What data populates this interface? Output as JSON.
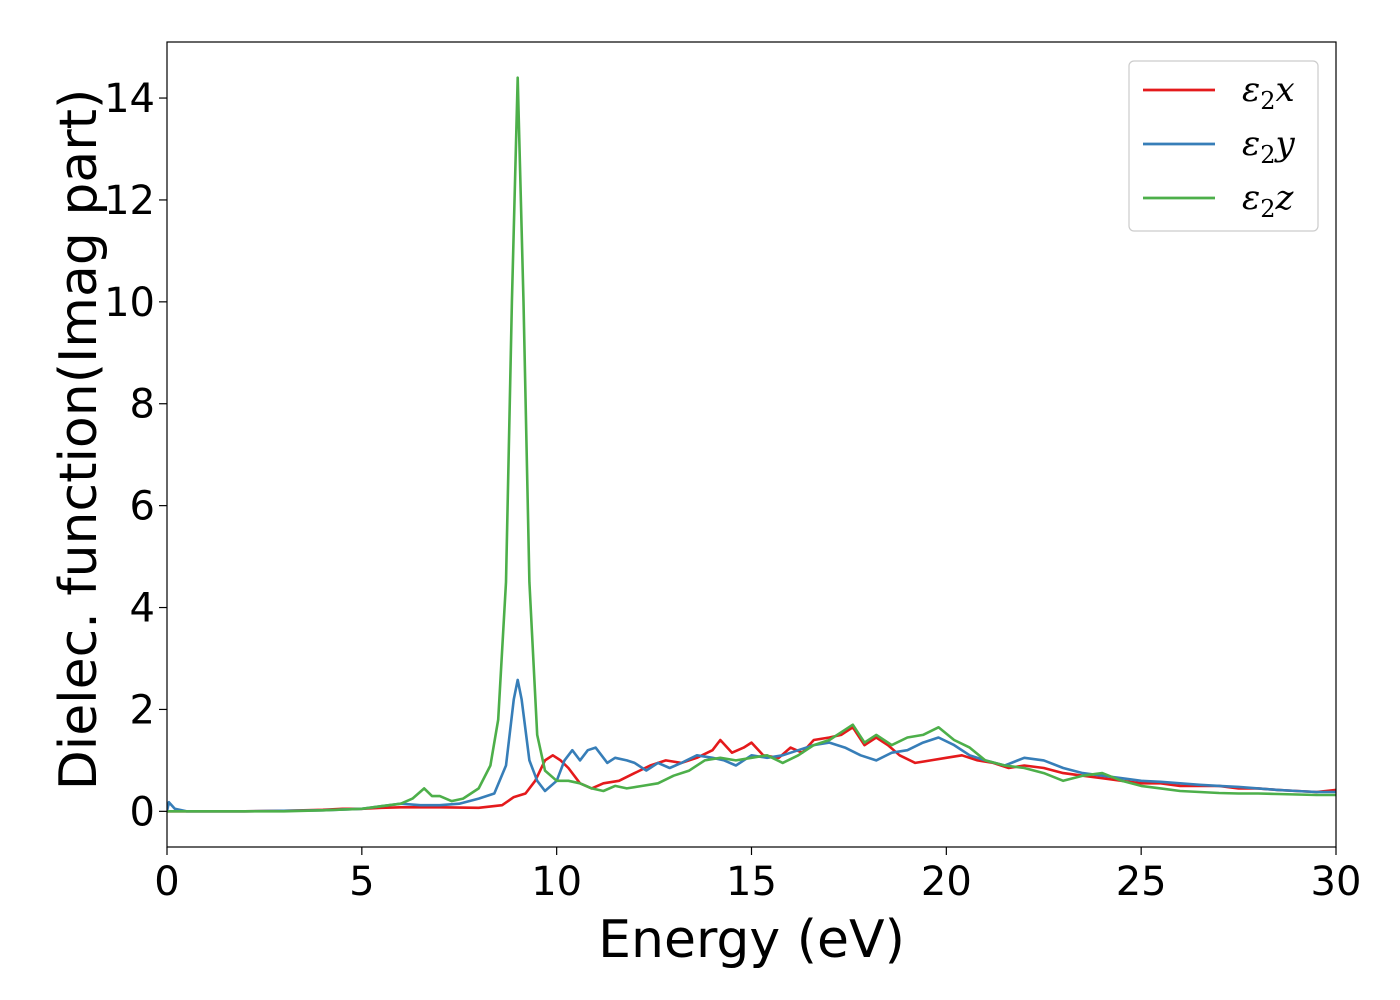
{
  "chart_data": {
    "type": "line",
    "title": "",
    "xlabel": "Energy (eV)",
    "ylabel": "Dielec. function(Imag part)",
    "xlim": [
      0,
      30
    ],
    "ylim": [
      -0.7,
      15.1
    ],
    "xticks": [
      0,
      5,
      10,
      15,
      20,
      25,
      30
    ],
    "yticks": [
      0,
      2,
      4,
      6,
      8,
      10,
      12,
      14
    ],
    "grid": false,
    "legend_position": "top-right",
    "series": [
      {
        "name": "ε2x",
        "legend": {
          "base": "ε",
          "sub": "2",
          "suffix": "x"
        },
        "color": "#e41a1c",
        "points": [
          [
            0,
            0.0
          ],
          [
            1,
            0.0
          ],
          [
            2,
            0.0
          ],
          [
            3,
            0.01
          ],
          [
            4,
            0.03
          ],
          [
            4.5,
            0.05
          ],
          [
            5,
            0.05
          ],
          [
            5.5,
            0.07
          ],
          [
            6,
            0.08
          ],
          [
            7,
            0.08
          ],
          [
            8,
            0.07
          ],
          [
            8.6,
            0.12
          ],
          [
            8.9,
            0.28
          ],
          [
            9.2,
            0.35
          ],
          [
            9.45,
            0.6
          ],
          [
            9.7,
            1.0
          ],
          [
            9.9,
            1.1
          ],
          [
            10.1,
            1.0
          ],
          [
            10.3,
            0.85
          ],
          [
            10.6,
            0.55
          ],
          [
            10.9,
            0.45
          ],
          [
            11.2,
            0.55
          ],
          [
            11.6,
            0.6
          ],
          [
            12.0,
            0.75
          ],
          [
            12.4,
            0.9
          ],
          [
            12.8,
            1.0
          ],
          [
            13.2,
            0.95
          ],
          [
            13.6,
            1.05
          ],
          [
            14.0,
            1.2
          ],
          [
            14.2,
            1.4
          ],
          [
            14.5,
            1.15
          ],
          [
            14.8,
            1.25
          ],
          [
            15.0,
            1.35
          ],
          [
            15.3,
            1.1
          ],
          [
            15.7,
            1.05
          ],
          [
            16.0,
            1.25
          ],
          [
            16.3,
            1.15
          ],
          [
            16.6,
            1.4
          ],
          [
            17.0,
            1.45
          ],
          [
            17.3,
            1.5
          ],
          [
            17.6,
            1.65
          ],
          [
            17.9,
            1.3
          ],
          [
            18.2,
            1.45
          ],
          [
            18.5,
            1.3
          ],
          [
            18.8,
            1.1
          ],
          [
            19.2,
            0.95
          ],
          [
            19.6,
            1.0
          ],
          [
            20.0,
            1.05
          ],
          [
            20.4,
            1.1
          ],
          [
            20.8,
            1.0
          ],
          [
            21.2,
            0.95
          ],
          [
            21.6,
            0.85
          ],
          [
            22.0,
            0.9
          ],
          [
            22.5,
            0.85
          ],
          [
            23.0,
            0.75
          ],
          [
            23.5,
            0.7
          ],
          [
            24.0,
            0.65
          ],
          [
            24.5,
            0.6
          ],
          [
            25.0,
            0.55
          ],
          [
            25.5,
            0.55
          ],
          [
            26.0,
            0.5
          ],
          [
            26.5,
            0.5
          ],
          [
            27.0,
            0.5
          ],
          [
            27.5,
            0.45
          ],
          [
            28.0,
            0.45
          ],
          [
            28.5,
            0.42
          ],
          [
            29.0,
            0.4
          ],
          [
            29.5,
            0.38
          ],
          [
            30.0,
            0.42
          ]
        ]
      },
      {
        "name": "ε2y",
        "legend": {
          "base": "ε",
          "sub": "2",
          "suffix": "y"
        },
        "color": "#377eb8",
        "points": [
          [
            0,
            0.0
          ],
          [
            0.05,
            0.18
          ],
          [
            0.2,
            0.05
          ],
          [
            0.5,
            0.0
          ],
          [
            2,
            0.0
          ],
          [
            4,
            0.02
          ],
          [
            5,
            0.05
          ],
          [
            5.5,
            0.1
          ],
          [
            6,
            0.15
          ],
          [
            6.5,
            0.12
          ],
          [
            7,
            0.12
          ],
          [
            7.5,
            0.15
          ],
          [
            8.0,
            0.25
          ],
          [
            8.4,
            0.35
          ],
          [
            8.7,
            0.9
          ],
          [
            8.9,
            2.2
          ],
          [
            9.0,
            2.58
          ],
          [
            9.1,
            2.2
          ],
          [
            9.3,
            1.0
          ],
          [
            9.5,
            0.6
          ],
          [
            9.7,
            0.4
          ],
          [
            10.0,
            0.6
          ],
          [
            10.2,
            1.0
          ],
          [
            10.4,
            1.2
          ],
          [
            10.6,
            1.0
          ],
          [
            10.8,
            1.2
          ],
          [
            11.0,
            1.25
          ],
          [
            11.3,
            0.95
          ],
          [
            11.5,
            1.05
          ],
          [
            11.8,
            1.0
          ],
          [
            12.0,
            0.95
          ],
          [
            12.3,
            0.8
          ],
          [
            12.6,
            0.95
          ],
          [
            12.9,
            0.85
          ],
          [
            13.2,
            0.95
          ],
          [
            13.6,
            1.1
          ],
          [
            14.0,
            1.05
          ],
          [
            14.3,
            1.0
          ],
          [
            14.6,
            0.9
          ],
          [
            15.0,
            1.1
          ],
          [
            15.4,
            1.05
          ],
          [
            15.8,
            1.1
          ],
          [
            16.2,
            1.2
          ],
          [
            16.6,
            1.3
          ],
          [
            17.0,
            1.35
          ],
          [
            17.4,
            1.25
          ],
          [
            17.8,
            1.1
          ],
          [
            18.2,
            1.0
          ],
          [
            18.6,
            1.15
          ],
          [
            19.0,
            1.2
          ],
          [
            19.4,
            1.35
          ],
          [
            19.8,
            1.45
          ],
          [
            20.2,
            1.3
          ],
          [
            20.6,
            1.1
          ],
          [
            21.0,
            1.0
          ],
          [
            21.5,
            0.9
          ],
          [
            22.0,
            1.05
          ],
          [
            22.5,
            1.0
          ],
          [
            23.0,
            0.85
          ],
          [
            23.5,
            0.75
          ],
          [
            24.0,
            0.7
          ],
          [
            24.5,
            0.65
          ],
          [
            25.0,
            0.6
          ],
          [
            25.5,
            0.58
          ],
          [
            26.0,
            0.55
          ],
          [
            26.5,
            0.52
          ],
          [
            27.0,
            0.5
          ],
          [
            27.5,
            0.48
          ],
          [
            28.0,
            0.45
          ],
          [
            28.5,
            0.42
          ],
          [
            29.0,
            0.4
          ],
          [
            29.5,
            0.38
          ],
          [
            30.0,
            0.38
          ]
        ]
      },
      {
        "name": "ε2z",
        "legend": {
          "base": "ε",
          "sub": "2",
          "suffix": "z"
        },
        "color": "#4daf4a",
        "points": [
          [
            0,
            0.0
          ],
          [
            1,
            0.0
          ],
          [
            3,
            0.0
          ],
          [
            4,
            0.02
          ],
          [
            5,
            0.05
          ],
          [
            5.5,
            0.1
          ],
          [
            6,
            0.15
          ],
          [
            6.3,
            0.25
          ],
          [
            6.6,
            0.45
          ],
          [
            6.8,
            0.3
          ],
          [
            7.0,
            0.3
          ],
          [
            7.3,
            0.2
          ],
          [
            7.6,
            0.25
          ],
          [
            8.0,
            0.45
          ],
          [
            8.3,
            0.9
          ],
          [
            8.5,
            1.8
          ],
          [
            8.7,
            4.5
          ],
          [
            8.85,
            10.0
          ],
          [
            9.0,
            14.4
          ],
          [
            9.15,
            10.0
          ],
          [
            9.3,
            4.5
          ],
          [
            9.5,
            1.5
          ],
          [
            9.7,
            0.8
          ],
          [
            10.0,
            0.6
          ],
          [
            10.3,
            0.6
          ],
          [
            10.6,
            0.55
          ],
          [
            10.9,
            0.45
          ],
          [
            11.2,
            0.4
          ],
          [
            11.5,
            0.5
          ],
          [
            11.8,
            0.45
          ],
          [
            12.2,
            0.5
          ],
          [
            12.6,
            0.55
          ],
          [
            13.0,
            0.7
          ],
          [
            13.4,
            0.8
          ],
          [
            13.8,
            1.0
          ],
          [
            14.2,
            1.05
          ],
          [
            14.6,
            1.0
          ],
          [
            15.0,
            1.05
          ],
          [
            15.4,
            1.1
          ],
          [
            15.8,
            0.95
          ],
          [
            16.2,
            1.1
          ],
          [
            16.6,
            1.3
          ],
          [
            17.0,
            1.4
          ],
          [
            17.4,
            1.6
          ],
          [
            17.6,
            1.7
          ],
          [
            17.9,
            1.35
          ],
          [
            18.2,
            1.5
          ],
          [
            18.6,
            1.3
          ],
          [
            19.0,
            1.45
          ],
          [
            19.4,
            1.5
          ],
          [
            19.8,
            1.65
          ],
          [
            20.2,
            1.4
          ],
          [
            20.6,
            1.25
          ],
          [
            21.0,
            1.0
          ],
          [
            21.5,
            0.9
          ],
          [
            22.0,
            0.85
          ],
          [
            22.5,
            0.75
          ],
          [
            23.0,
            0.6
          ],
          [
            23.5,
            0.7
          ],
          [
            24.0,
            0.75
          ],
          [
            24.5,
            0.6
          ],
          [
            25.0,
            0.5
          ],
          [
            25.5,
            0.45
          ],
          [
            26.0,
            0.4
          ],
          [
            26.5,
            0.38
          ],
          [
            27.0,
            0.36
          ],
          [
            27.5,
            0.35
          ],
          [
            28.0,
            0.35
          ],
          [
            28.5,
            0.34
          ],
          [
            29.0,
            0.33
          ],
          [
            29.5,
            0.32
          ],
          [
            30.0,
            0.32
          ]
        ]
      }
    ]
  }
}
